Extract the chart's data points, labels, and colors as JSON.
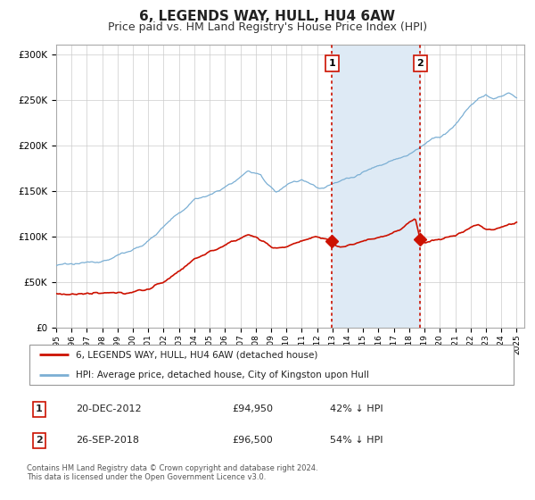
{
  "title": "6, LEGENDS WAY, HULL, HU4 6AW",
  "subtitle": "Price paid vs. HM Land Registry's House Price Index (HPI)",
  "title_fontsize": 11,
  "subtitle_fontsize": 9,
  "background_color": "#ffffff",
  "grid_color": "#cccccc",
  "hpi_line_color": "#7bafd4",
  "price_color": "#cc1100",
  "shaded_region_color": "#deeaf5",
  "marker1_x": 2012.97,
  "marker2_x": 2018.73,
  "marker1_price": 94950,
  "marker2_price": 96500,
  "marker1_date": "20-DEC-2012",
  "marker2_date": "26-SEP-2018",
  "marker1_pct": "42% ↓ HPI",
  "marker2_pct": "54% ↓ HPI",
  "legend_line1": "6, LEGENDS WAY, HULL, HU4 6AW (detached house)",
  "legend_line2": "HPI: Average price, detached house, City of Kingston upon Hull",
  "footnote": "Contains HM Land Registry data © Crown copyright and database right 2024.\nThis data is licensed under the Open Government Licence v3.0.",
  "ylim": [
    0,
    310000
  ],
  "xlim_start": 1995.0,
  "xlim_end": 2025.5
}
